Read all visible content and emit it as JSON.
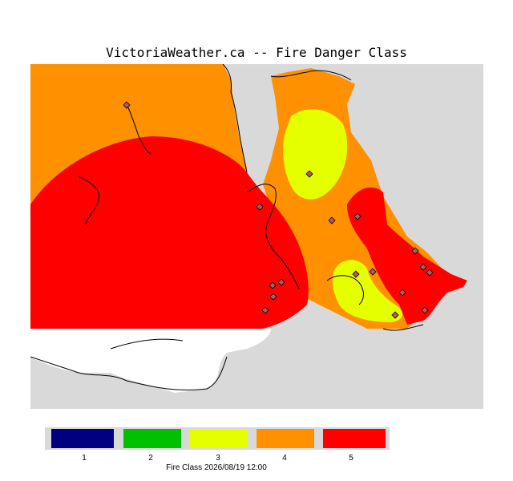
{
  "title": "VictoriaWeather.ca -- Fire Danger Class",
  "colors": {
    "land_background": "#d9d9d9",
    "water_sea": "#ffffff",
    "class_1": "#000080",
    "class_2": "#00c000",
    "class_3": "#e6ff00",
    "class_4": "#ff9000",
    "class_5": "#ff0000"
  },
  "legend": {
    "items": [
      {
        "label": "1",
        "color": "#000080"
      },
      {
        "label": "2",
        "color": "#00c000"
      },
      {
        "label": "3",
        "color": "#e6ff00"
      },
      {
        "label": "4",
        "color": "#ff9000"
      },
      {
        "label": "5",
        "color": "#ff0000"
      }
    ],
    "caption": "Fire Class   2026/08/19 12:00"
  },
  "station_marker_icon": "diamond-icon"
}
